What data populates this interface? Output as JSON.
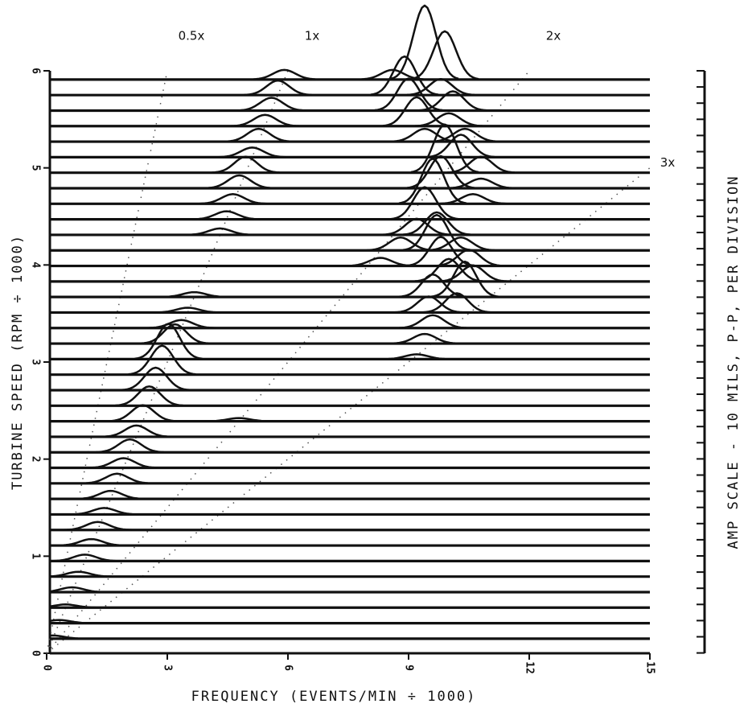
{
  "chart_data": {
    "type": "waterfall",
    "x_label": "FREQUENCY (EVENTS/MIN ÷ 1000)",
    "y_label": "TURBINE SPEED (RPM ÷ 1000)",
    "right_label": "AMP SCALE - 10 MILS, P-P, PER DIVISION",
    "xlim": [
      0,
      15
    ],
    "xticks": [
      0,
      3,
      6,
      9,
      12,
      15
    ],
    "ylim": [
      0,
      6
    ],
    "yticks": [
      0,
      1,
      2,
      3,
      4,
      5,
      6
    ],
    "orders": [
      {
        "value": 0.5,
        "label": "0.5x"
      },
      {
        "value": 1,
        "label": "1x"
      },
      {
        "value": 2,
        "label": "2x"
      },
      {
        "value": 3,
        "label": "3x"
      }
    ],
    "color": "#111111",
    "traces": [
      {
        "speed": 0.15,
        "peaks": [
          [
            0.15,
            2
          ]
        ]
      },
      {
        "speed": 0.31,
        "peaks": [
          [
            0.31,
            2
          ]
        ]
      },
      {
        "speed": 0.47,
        "peaks": [
          [
            0.47,
            2
          ]
        ]
      },
      {
        "speed": 0.63,
        "peaks": [
          [
            0.63,
            3
          ]
        ]
      },
      {
        "speed": 0.79,
        "peaks": [
          [
            0.79,
            3
          ]
        ]
      },
      {
        "speed": 0.95,
        "peaks": [
          [
            0.95,
            4
          ]
        ]
      },
      {
        "speed": 1.11,
        "peaks": [
          [
            1.11,
            4
          ]
        ]
      },
      {
        "speed": 1.27,
        "peaks": [
          [
            1.27,
            5
          ]
        ]
      },
      {
        "speed": 1.43,
        "peaks": [
          [
            1.43,
            4
          ]
        ]
      },
      {
        "speed": 1.59,
        "peaks": [
          [
            1.59,
            5
          ]
        ]
      },
      {
        "speed": 1.75,
        "peaks": [
          [
            1.75,
            6
          ]
        ]
      },
      {
        "speed": 1.91,
        "peaks": [
          [
            1.91,
            6
          ]
        ]
      },
      {
        "speed": 2.07,
        "peaks": [
          [
            2.07,
            8
          ]
        ]
      },
      {
        "speed": 2.23,
        "peaks": [
          [
            2.23,
            7
          ]
        ]
      },
      {
        "speed": 2.39,
        "peaks": [
          [
            2.39,
            10
          ],
          [
            4.78,
            2
          ]
        ]
      },
      {
        "speed": 2.55,
        "peaks": [
          [
            2.55,
            12
          ]
        ]
      },
      {
        "speed": 2.71,
        "peaks": [
          [
            2.71,
            14
          ]
        ]
      },
      {
        "speed": 2.87,
        "peaks": [
          [
            2.87,
            18
          ]
        ]
      },
      {
        "speed": 3.03,
        "peaks": [
          [
            3.03,
            22
          ],
          [
            9.2,
            3
          ]
        ]
      },
      {
        "speed": 3.19,
        "peaks": [
          [
            3.19,
            12
          ],
          [
            9.4,
            6
          ]
        ]
      },
      {
        "speed": 3.35,
        "peaks": [
          [
            3.35,
            5
          ],
          [
            9.6,
            8
          ]
        ]
      },
      {
        "speed": 3.51,
        "peaks": [
          [
            3.51,
            3
          ],
          [
            9.5,
            10
          ],
          [
            10.2,
            12
          ]
        ]
      },
      {
        "speed": 3.67,
        "peaks": [
          [
            3.67,
            3
          ],
          [
            9.6,
            14
          ],
          [
            10.4,
            22
          ]
        ]
      },
      {
        "speed": 3.83,
        "peaks": [
          [
            10.0,
            14
          ],
          [
            10.6,
            10
          ]
        ]
      },
      {
        "speed": 3.99,
        "peaks": [
          [
            8.3,
            5
          ],
          [
            9.8,
            18
          ],
          [
            10.5,
            10
          ]
        ]
      },
      {
        "speed": 4.15,
        "peaks": [
          [
            8.8,
            8
          ],
          [
            9.7,
            22
          ],
          [
            10.3,
            8
          ]
        ]
      },
      {
        "speed": 4.31,
        "peaks": [
          [
            4.31,
            4
          ],
          [
            9.2,
            10
          ],
          [
            9.7,
            14
          ]
        ]
      },
      {
        "speed": 4.47,
        "peaks": [
          [
            4.47,
            5
          ],
          [
            9.4,
            20
          ]
        ]
      },
      {
        "speed": 4.63,
        "peaks": [
          [
            4.63,
            6
          ],
          [
            9.6,
            28
          ],
          [
            10.6,
            6
          ]
        ]
      },
      {
        "speed": 4.79,
        "peaks": [
          [
            4.79,
            8
          ],
          [
            9.8,
            20
          ],
          [
            10.8,
            6
          ]
        ]
      },
      {
        "speed": 4.95,
        "peaks": [
          [
            4.95,
            10
          ],
          [
            9.9,
            30
          ],
          [
            10.8,
            10
          ]
        ]
      },
      {
        "speed": 5.11,
        "peaks": [
          [
            5.11,
            6
          ],
          [
            10.3,
            14
          ]
        ]
      },
      {
        "speed": 5.27,
        "peaks": [
          [
            5.27,
            8
          ],
          [
            9.4,
            8
          ],
          [
            10.4,
            8
          ]
        ]
      },
      {
        "speed": 5.43,
        "peaks": [
          [
            5.43,
            7
          ],
          [
            9.2,
            18
          ],
          [
            10.0,
            8
          ]
        ]
      },
      {
        "speed": 5.59,
        "peaks": [
          [
            5.59,
            8
          ],
          [
            9.0,
            20
          ],
          [
            10.1,
            12
          ]
        ]
      },
      {
        "speed": 5.75,
        "peaks": [
          [
            5.75,
            9
          ],
          [
            8.9,
            24
          ],
          [
            9.8,
            10
          ]
        ]
      },
      {
        "speed": 5.91,
        "peaks": [
          [
            5.91,
            6
          ],
          [
            8.6,
            6
          ],
          [
            9.4,
            46
          ],
          [
            9.9,
            30
          ]
        ]
      }
    ]
  }
}
